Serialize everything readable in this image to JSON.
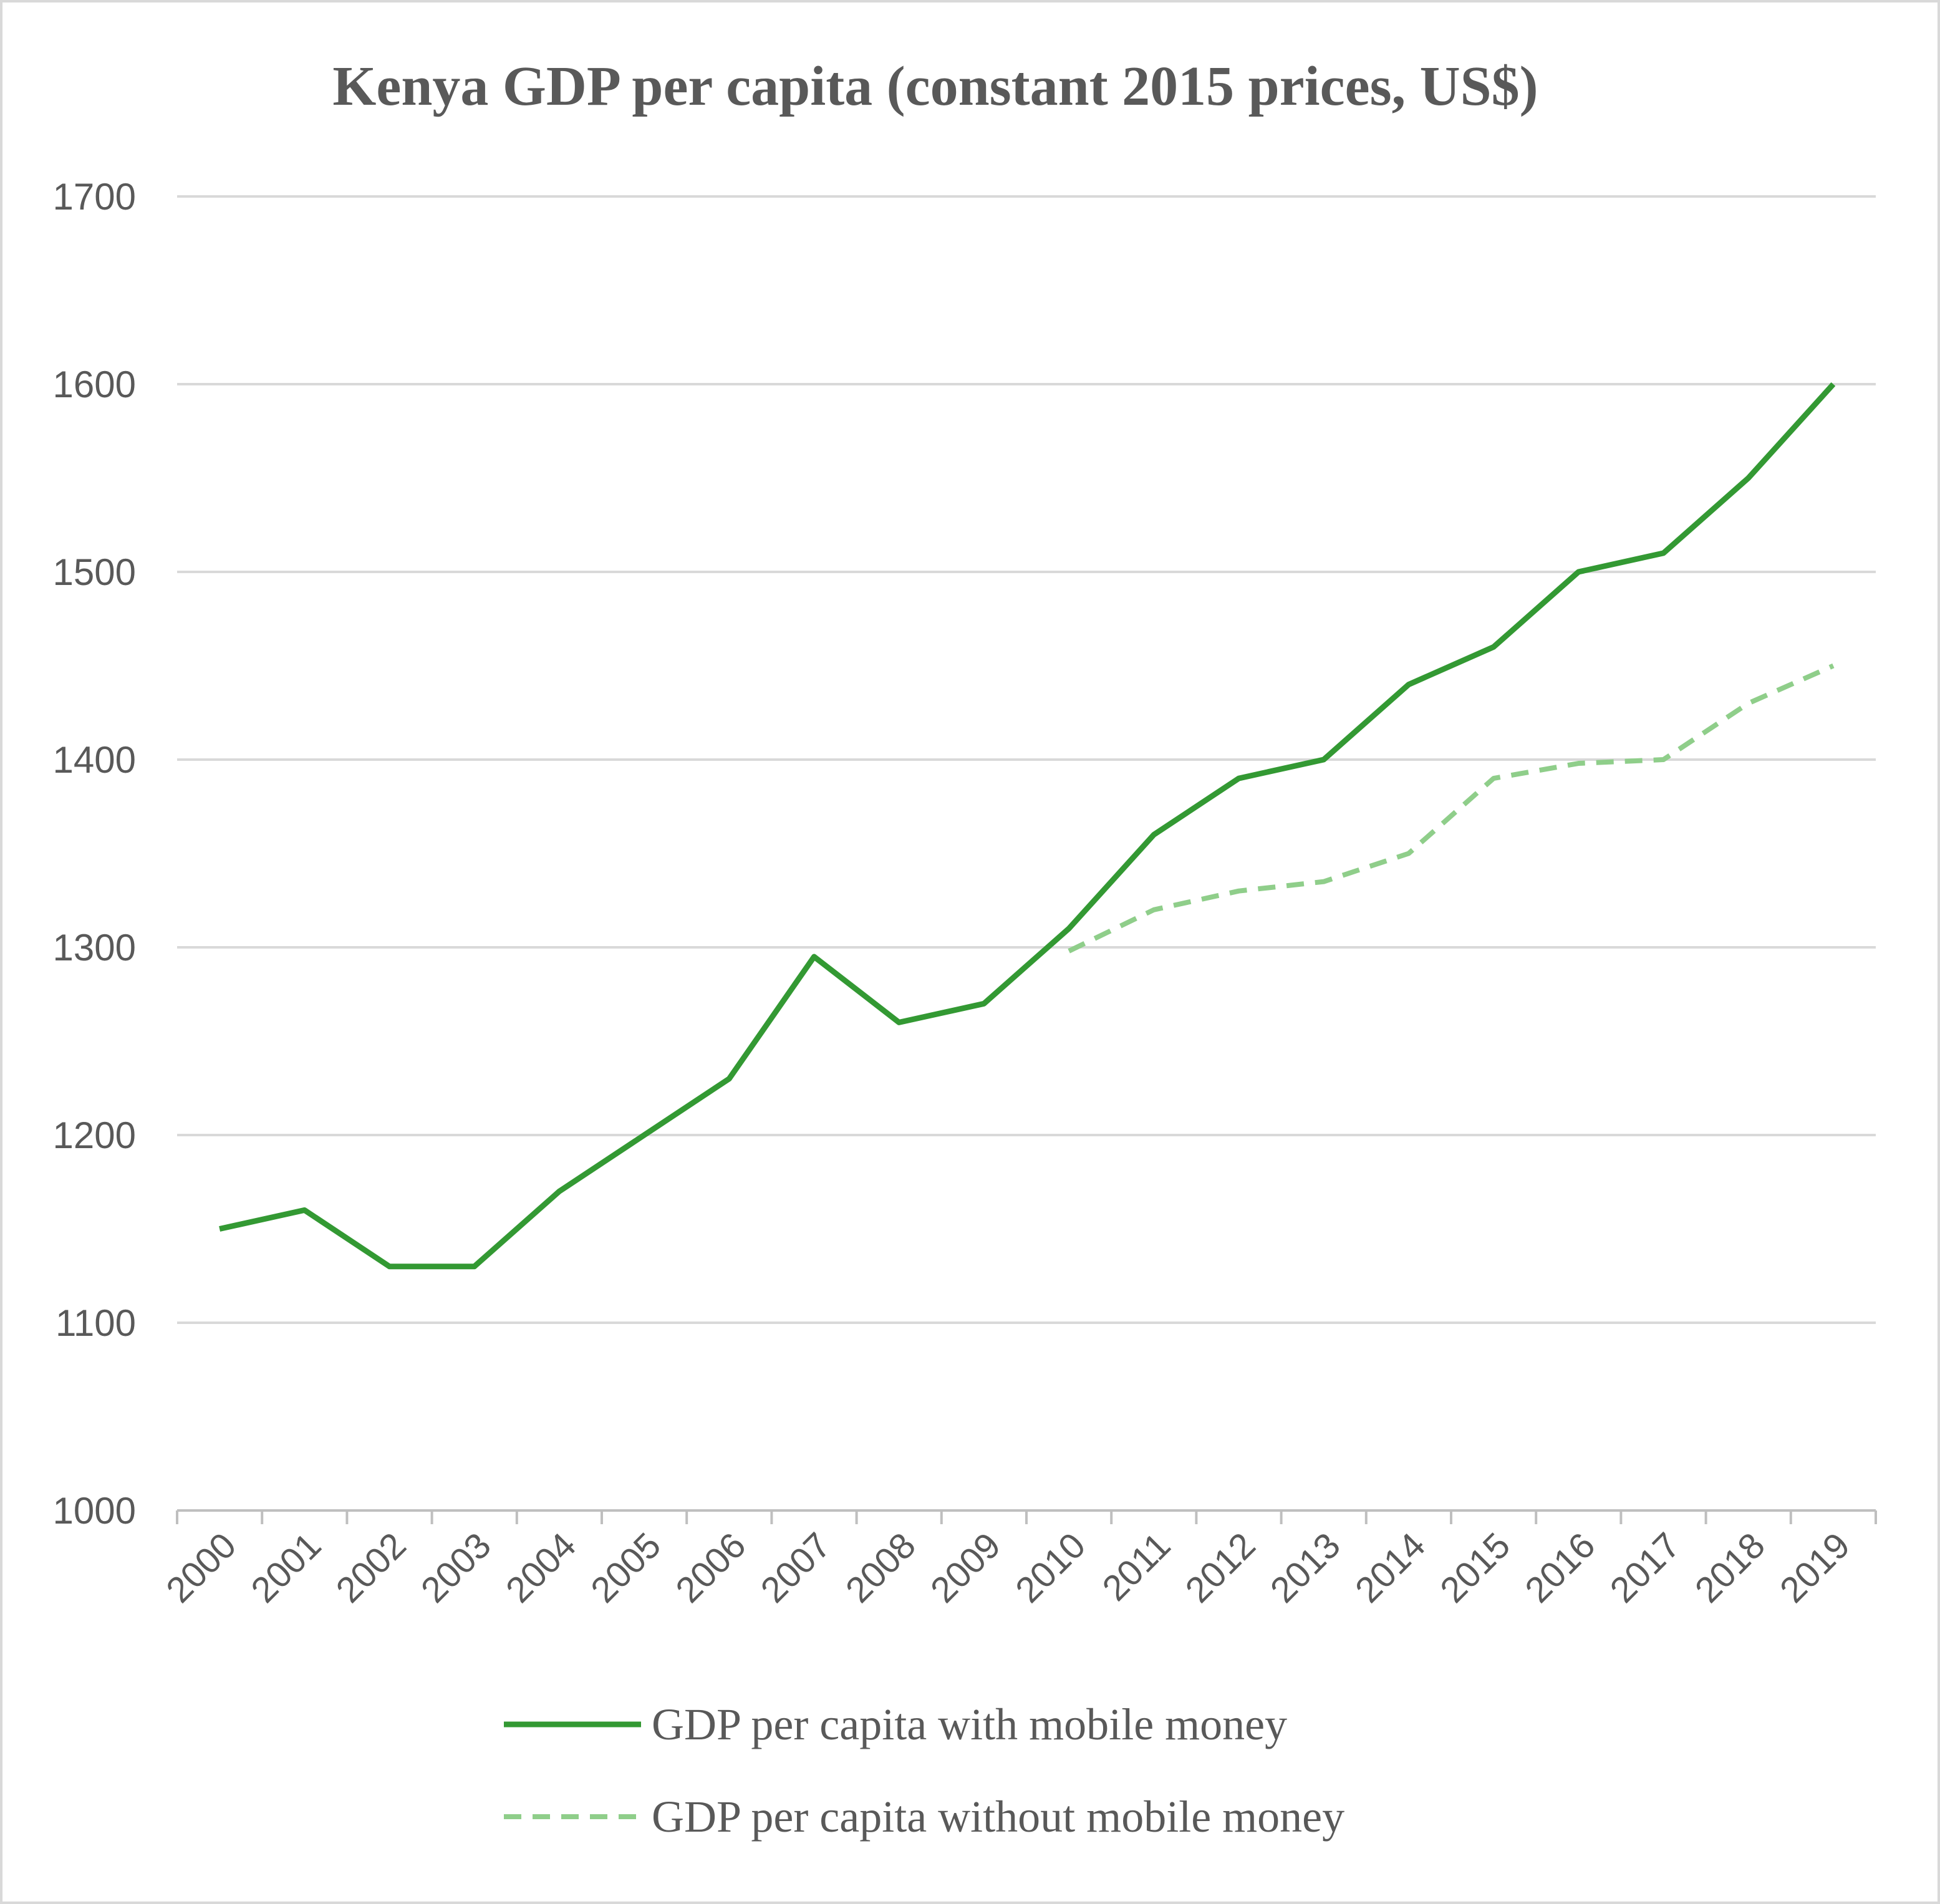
{
  "chart_data": {
    "type": "line",
    "title": "Kenya GDP per capita (constant 2015 prices, US$)",
    "xlabel": "",
    "ylabel": "",
    "ylim": [
      1000,
      1700
    ],
    "yticks": [
      "1000",
      "1100",
      "1200",
      "1300",
      "1400",
      "1500",
      "1600",
      "1700"
    ],
    "grid": true,
    "legend_position": "bottom",
    "categories": [
      "2000",
      "2001",
      "2002",
      "2003",
      "2004",
      "2005",
      "2006",
      "2007",
      "2008",
      "2009",
      "2010",
      "2011",
      "2012",
      "2013",
      "2014",
      "2015",
      "2016",
      "2017",
      "2018",
      "2019"
    ],
    "series": [
      {
        "name": "GDP per capita with mobile money",
        "style": "solid",
        "color": "#339933",
        "values": [
          1150,
          1160,
          1130,
          1130,
          1170,
          1200,
          1230,
          1295,
          1260,
          1270,
          1310,
          1360,
          1390,
          1400,
          1440,
          1460,
          1500,
          1510,
          1550,
          1600
        ]
      },
      {
        "name": "GDP per capita without mobile money",
        "style": "dashed",
        "color": "#8fce8a",
        "values": [
          null,
          null,
          null,
          null,
          null,
          null,
          null,
          null,
          null,
          null,
          1298,
          1320,
          1330,
          1335,
          1350,
          1390,
          1398,
          1400,
          1430,
          1450
        ]
      }
    ]
  }
}
